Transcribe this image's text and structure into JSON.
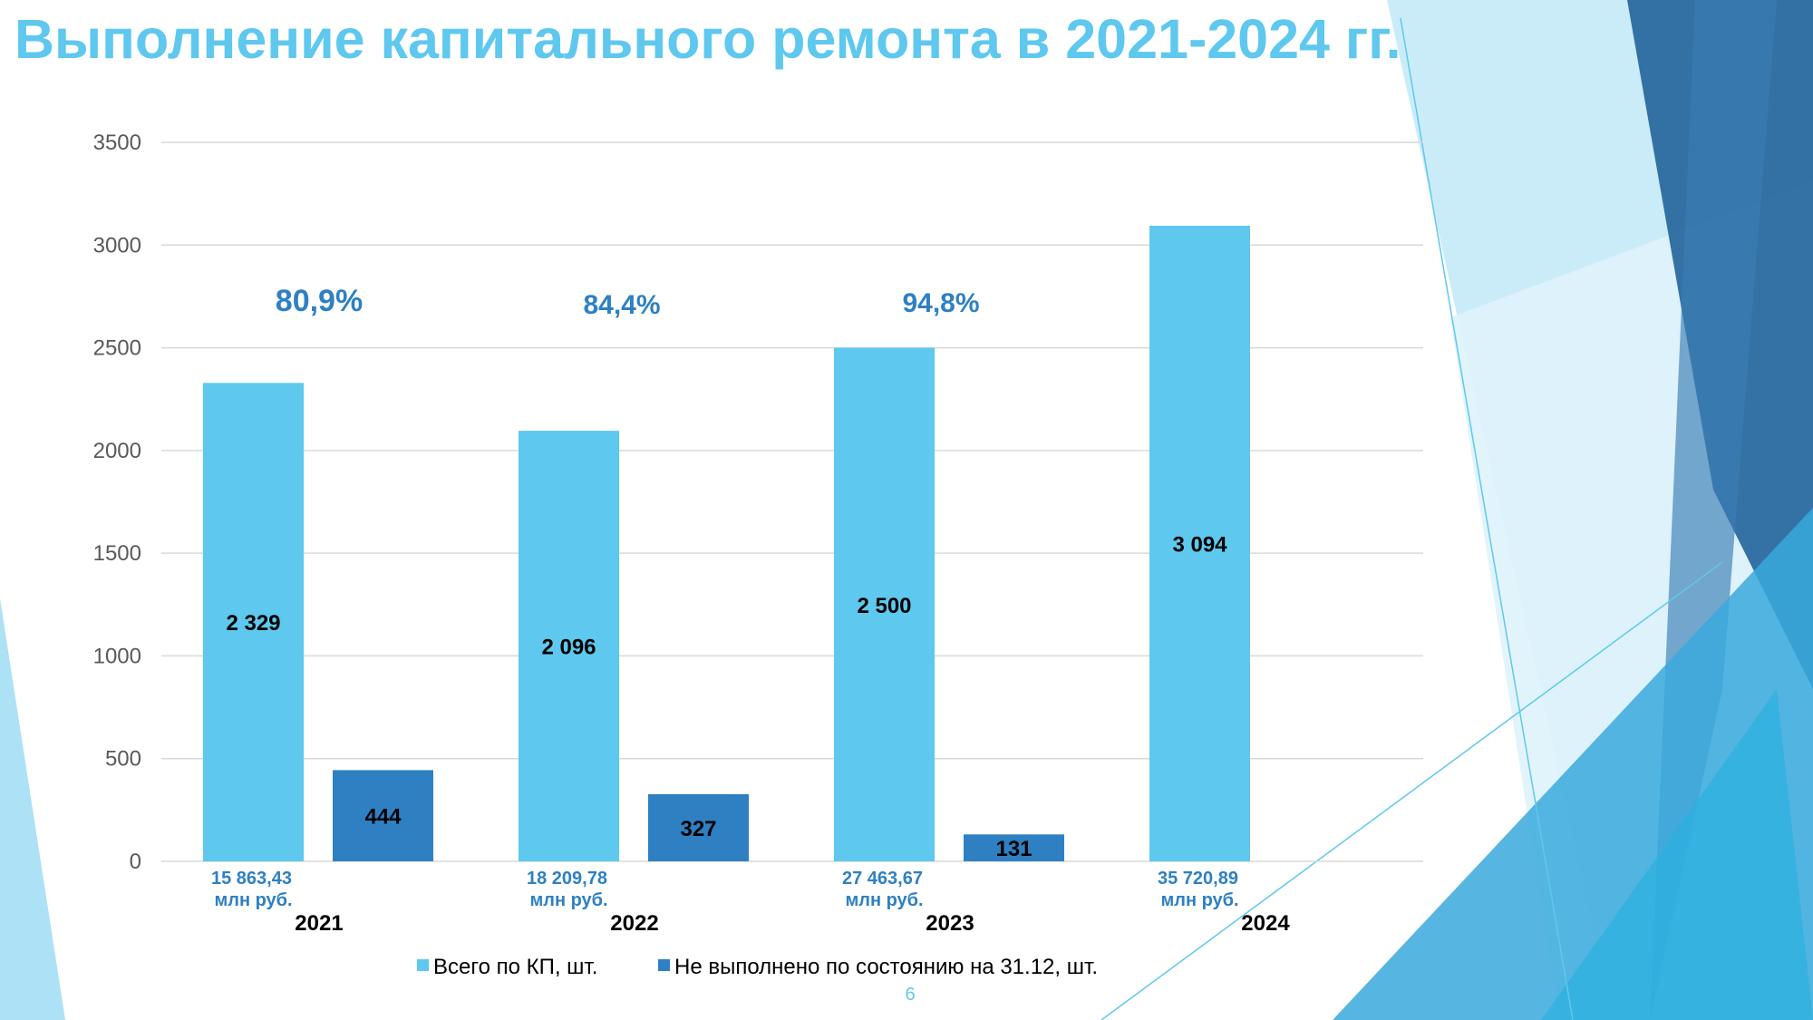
{
  "slide": {
    "title": "Выполнение капитального ремонта в 2021-2024 гг.",
    "page_number": "6"
  },
  "colors": {
    "title": "#5ec8ee",
    "series_total": "#5ec8ee",
    "series_unfulfilled": "#2e80c3",
    "percent_label": "#2e80c3",
    "sum_label": "#2e80c3",
    "gridline": "#d9d9d9",
    "deco_light": "#9fdcf3",
    "deco_mid": "#3aa9dc",
    "deco_dark": "#2a6aa0"
  },
  "chart_data": {
    "type": "bar",
    "title": "",
    "xlabel": "",
    "ylabel": "",
    "categories": [
      "2021",
      "2022",
      "2023",
      "2024"
    ],
    "ylim": [
      0,
      3500
    ],
    "yticks": [
      0,
      500,
      1000,
      1500,
      2000,
      2500,
      3000,
      3500
    ],
    "grid": true,
    "legend_position": "bottom",
    "series": [
      {
        "name": "Всего по КП, шт.",
        "values": [
          2329,
          2096,
          2500,
          3094
        ],
        "labels": [
          "2 329",
          "2 096",
          "2 500",
          "3 094"
        ]
      },
      {
        "name": "Не выполнено по состоянию на 31.12, шт.",
        "values": [
          444,
          327,
          131,
          null
        ],
        "labels": [
          "444",
          "327",
          "131",
          ""
        ]
      }
    ],
    "annotations": {
      "completion_percent": [
        "80,9%",
        "84,4%",
        "94,8%"
      ],
      "financing": [
        [
          "15 863,43",
          "млн руб."
        ],
        [
          "18 209,78",
          "млн руб."
        ],
        [
          "27 463,67",
          "млн руб."
        ],
        [
          "35 720,89",
          "млн руб."
        ]
      ]
    }
  }
}
